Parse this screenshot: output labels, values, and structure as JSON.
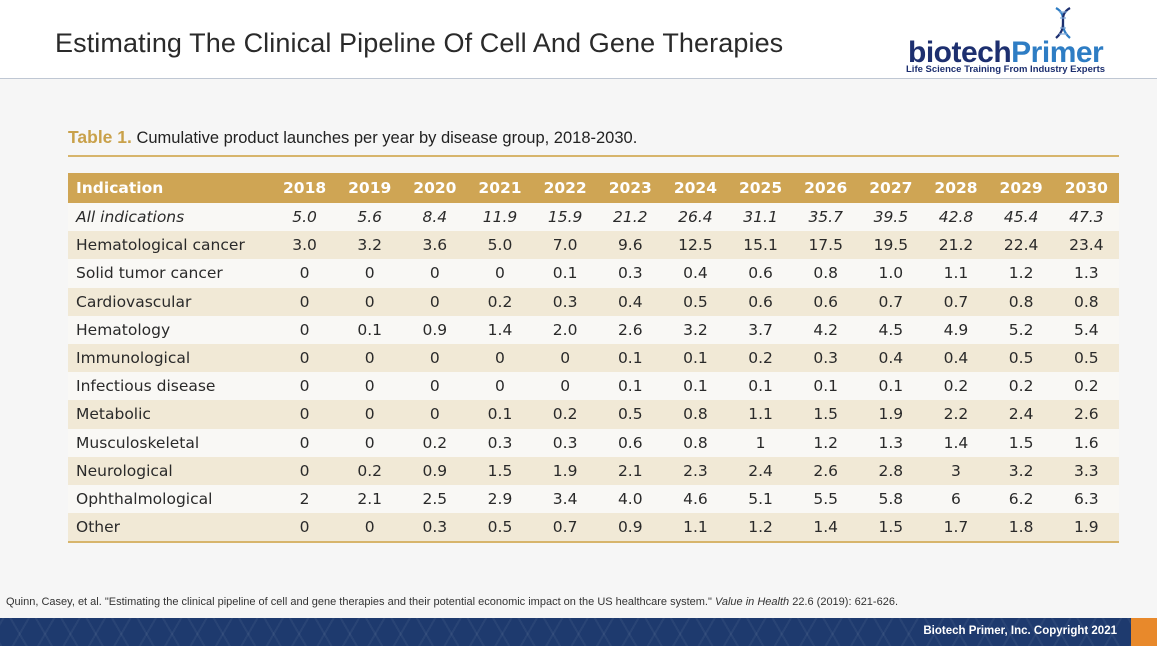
{
  "slide": {
    "title": "Estimating The Clinical Pipeline Of Cell And Gene Therapies"
  },
  "logo": {
    "word_part1": "biotech",
    "word_part2": "Primer",
    "tagline": "Life Science Training From Industry Experts",
    "colors": {
      "navy": "#1d2f6f",
      "blue": "#2e7dc4"
    }
  },
  "table": {
    "label": "Table 1.",
    "caption": "Cumulative product launches per year by disease group, 2018-2030.",
    "header_color": "#cfa554",
    "columns": [
      "Indication",
      "2018",
      "2019",
      "2020",
      "2021",
      "2022",
      "2023",
      "2024",
      "2025",
      "2026",
      "2027",
      "2028",
      "2029",
      "2030"
    ],
    "rows": [
      {
        "indication": "All indications",
        "italic": true,
        "values": [
          "5.0",
          "5.6",
          "8.4",
          "11.9",
          "15.9",
          "21.2",
          "26.4",
          "31.1",
          "35.7",
          "39.5",
          "42.8",
          "45.4",
          "47.3"
        ]
      },
      {
        "indication": "Hematological cancer",
        "values": [
          "3.0",
          "3.2",
          "3.6",
          "5.0",
          "7.0",
          "9.6",
          "12.5",
          "15.1",
          "17.5",
          "19.5",
          "21.2",
          "22.4",
          "23.4"
        ]
      },
      {
        "indication": "Solid tumor cancer",
        "values": [
          "0",
          "0",
          "0",
          "0",
          "0.1",
          "0.3",
          "0.4",
          "0.6",
          "0.8",
          "1.0",
          "1.1",
          "1.2",
          "1.3"
        ]
      },
      {
        "indication": "Cardiovascular",
        "values": [
          "0",
          "0",
          "0",
          "0.2",
          "0.3",
          "0.4",
          "0.5",
          "0.6",
          "0.6",
          "0.7",
          "0.7",
          "0.8",
          "0.8"
        ]
      },
      {
        "indication": "Hematology",
        "values": [
          "0",
          "0.1",
          "0.9",
          "1.4",
          "2.0",
          "2.6",
          "3.2",
          "3.7",
          "4.2",
          "4.5",
          "4.9",
          "5.2",
          "5.4"
        ]
      },
      {
        "indication": "Immunological",
        "values": [
          "0",
          "0",
          "0",
          "0",
          "0",
          "0.1",
          "0.1",
          "0.2",
          "0.3",
          "0.4",
          "0.4",
          "0.5",
          "0.5"
        ]
      },
      {
        "indication": "Infectious disease",
        "values": [
          "0",
          "0",
          "0",
          "0",
          "0",
          "0.1",
          "0.1",
          "0.1",
          "0.1",
          "0.1",
          "0.2",
          "0.2",
          "0.2"
        ]
      },
      {
        "indication": "Metabolic",
        "values": [
          "0",
          "0",
          "0",
          "0.1",
          "0.2",
          "0.5",
          "0.8",
          "1.1",
          "1.5",
          "1.9",
          "2.2",
          "2.4",
          "2.6"
        ]
      },
      {
        "indication": "Musculoskeletal",
        "values": [
          "0",
          "0",
          "0.2",
          "0.3",
          "0.3",
          "0.6",
          "0.8",
          "1",
          "1.2",
          "1.3",
          "1.4",
          "1.5",
          "1.6"
        ]
      },
      {
        "indication": "Neurological",
        "values": [
          "0",
          "0.2",
          "0.9",
          "1.5",
          "1.9",
          "2.1",
          "2.3",
          "2.4",
          "2.6",
          "2.8",
          "3",
          "3.2",
          "3.3"
        ]
      },
      {
        "indication": "Ophthalmological",
        "values": [
          "2",
          "2.1",
          "2.5",
          "2.9",
          "3.4",
          "4.0",
          "4.6",
          "5.1",
          "5.5",
          "5.8",
          "6",
          "6.2",
          "6.3"
        ]
      },
      {
        "indication": "Other",
        "values": [
          "0",
          "0",
          "0.3",
          "0.5",
          "0.7",
          "0.9",
          "1.1",
          "1.2",
          "1.4",
          "1.5",
          "1.7",
          "1.8",
          "1.9"
        ]
      }
    ]
  },
  "citation": {
    "prefix": "Quinn, Casey, et al. \"Estimating the clinical pipeline of cell and gene therapies and their potential economic impact on the US healthcare system.\" ",
    "journal": "Value in Health",
    "suffix": " 22.6 (2019): 621-626."
  },
  "footer": {
    "copyright": "Biotech Primer, Inc. Copyright 2021",
    "bar_color": "#1e3a6e",
    "accent_color": "#e8892b"
  }
}
